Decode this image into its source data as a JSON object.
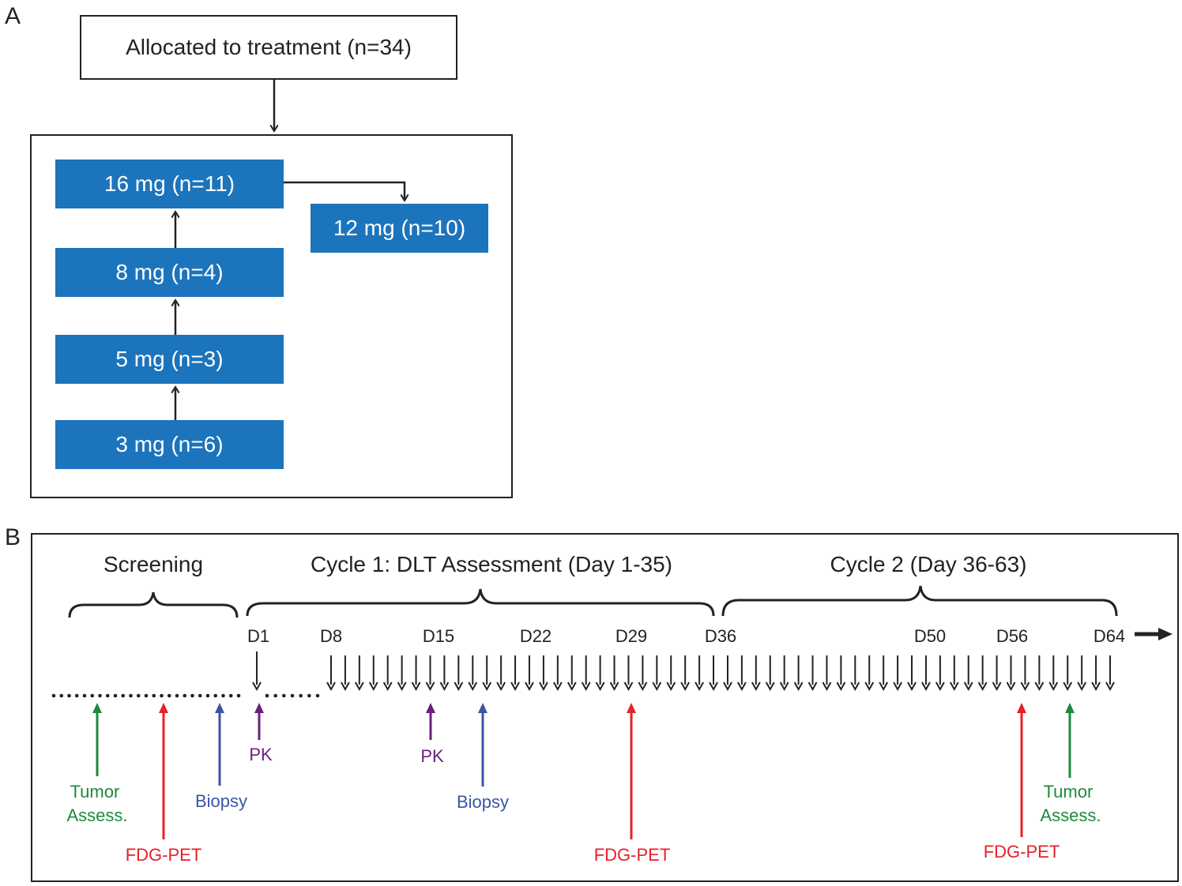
{
  "panelA": {
    "letter": "A",
    "allocated": "Allocated to treatment (n=34)",
    "doses": [
      {
        "id": "16",
        "label": "16 mg (n=11)"
      },
      {
        "id": "8",
        "label": "8 mg (n=4)"
      },
      {
        "id": "5",
        "label": "5 mg (n=3)"
      },
      {
        "id": "3",
        "label": "3 mg (n=6)"
      },
      {
        "id": "12",
        "label": "12 mg (n=10)"
      }
    ],
    "dose_color": "#1c74bc"
  },
  "panelB": {
    "letter": "B",
    "phases": [
      "Screening",
      "Cycle 1: DLT Assessment (Day 1-35)",
      "Cycle 2 (Day 36-63)"
    ],
    "days": [
      "D1",
      "D8",
      "D15",
      "D22",
      "D29",
      "D36",
      "D50",
      "D56",
      "D64"
    ],
    "events": [
      {
        "label": "Tumor Assess.",
        "color": "#1e8a3e"
      },
      {
        "label": "FDG-PET",
        "color": "#e8202a"
      },
      {
        "label": "Biopsy",
        "color": "#3a55a5"
      },
      {
        "label": "PK",
        "color": "#6a1f7a"
      },
      {
        "label": "PK",
        "color": "#6a1f7a"
      },
      {
        "label": "Biopsy",
        "color": "#3a55a5"
      },
      {
        "label": "FDG-PET",
        "color": "#e8202a"
      },
      {
        "label": "FDG-PET",
        "color": "#e8202a"
      },
      {
        "label": "Tumor Assess.",
        "color": "#1e8a3e"
      }
    ]
  }
}
